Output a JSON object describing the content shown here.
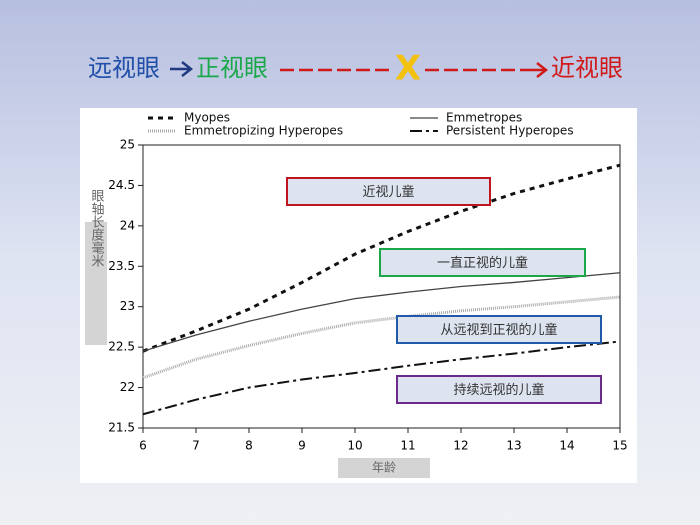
{
  "header": {
    "left": "远视眼",
    "middle": "正视眼",
    "cross": "X",
    "right": "近视眼"
  },
  "chart_data": {
    "type": "line",
    "x": [
      6,
      7,
      8,
      9,
      10,
      11,
      12,
      13,
      14,
      15
    ],
    "xlim": [
      6,
      15
    ],
    "xticks": [
      6,
      7,
      8,
      9,
      10,
      11,
      12,
      13,
      14,
      15
    ],
    "ylim": [
      21.5,
      25
    ],
    "yticks": [
      21.5,
      22,
      22.5,
      23,
      23.5,
      24,
      24.5,
      25
    ],
    "y_label": "眼轴长度毫米",
    "x_label": "年龄",
    "series": [
      {
        "name": "Myopes",
        "color": "#111111",
        "style": "dash",
        "values": [
          22.45,
          22.7,
          22.97,
          23.3,
          23.65,
          23.93,
          24.18,
          24.4,
          24.58,
          24.75
        ]
      },
      {
        "name": "Emmetropes",
        "color": "#444444",
        "style": "solid",
        "values": [
          22.45,
          22.65,
          22.82,
          22.97,
          23.1,
          23.18,
          23.25,
          23.3,
          23.36,
          23.42
        ]
      },
      {
        "name": "Emmetropizing Hyperopes",
        "color": "#aaaaaa",
        "style": "texture",
        "values": [
          22.12,
          22.35,
          22.52,
          22.67,
          22.8,
          22.88,
          22.95,
          23.0,
          23.06,
          23.12
        ]
      },
      {
        "name": "Persistent Hyperopes",
        "color": "#111111",
        "style": "dashdot",
        "values": [
          21.67,
          21.85,
          22.0,
          22.1,
          22.18,
          22.27,
          22.35,
          22.42,
          22.5,
          22.57
        ]
      }
    ],
    "annotations": [
      {
        "text": "近视儿童",
        "color": "#c0141e"
      },
      {
        "text": "一直正视的儿童",
        "color": "#1aa84a"
      },
      {
        "text": "从远视到正视的儿童",
        "color": "#1e5aa8"
      },
      {
        "text": "持续远视的儿童",
        "color": "#6a2a8a"
      }
    ]
  }
}
